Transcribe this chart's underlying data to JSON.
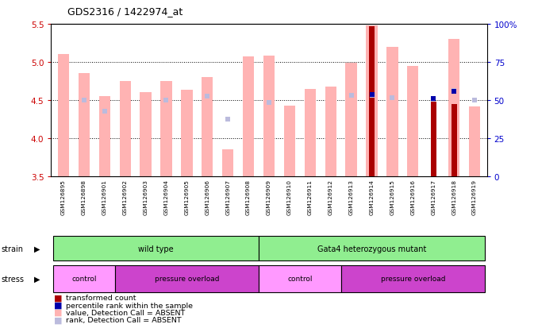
{
  "title": "GDS2316 / 1422974_at",
  "samples": [
    "GSM126895",
    "GSM126898",
    "GSM126901",
    "GSM126902",
    "GSM126903",
    "GSM126904",
    "GSM126905",
    "GSM126906",
    "GSM126907",
    "GSM126908",
    "GSM126909",
    "GSM126910",
    "GSM126911",
    "GSM126912",
    "GSM126913",
    "GSM126914",
    "GSM126915",
    "GSM126916",
    "GSM126917",
    "GSM126918",
    "GSM126919"
  ],
  "pink_bar_values": [
    5.1,
    4.85,
    4.55,
    4.75,
    4.6,
    4.75,
    4.63,
    4.8,
    3.85,
    5.07,
    5.08,
    4.43,
    4.65,
    4.68,
    4.99,
    5.48,
    5.2,
    4.95,
    null,
    5.3,
    4.42
  ],
  "blue_sq_ranks": [
    null,
    4.5,
    4.35,
    null,
    null,
    4.5,
    null,
    4.55,
    4.25,
    null,
    4.47,
    null,
    null,
    null,
    4.56,
    4.56,
    4.53,
    null,
    4.51,
    4.62,
    4.5
  ],
  "dark_red_values": [
    null,
    null,
    null,
    null,
    null,
    null,
    null,
    null,
    null,
    null,
    null,
    null,
    null,
    null,
    null,
    5.47,
    null,
    null,
    4.48,
    4.45,
    null
  ],
  "dark_blue_ranks": [
    null,
    null,
    null,
    null,
    null,
    null,
    null,
    null,
    null,
    null,
    null,
    null,
    null,
    null,
    null,
    4.57,
    null,
    null,
    4.52,
    4.61,
    null
  ],
  "ylim_left": [
    3.5,
    5.5
  ],
  "ylim_right": [
    0,
    100
  ],
  "yticks_left": [
    3.5,
    4.0,
    4.5,
    5.0,
    5.5
  ],
  "yticks_right": [
    0,
    25,
    50,
    75,
    100
  ],
  "ytick_labels_right": [
    "0",
    "25",
    "50",
    "75",
    "100%"
  ],
  "pink_color": "#FFB3B3",
  "lightblue_color": "#BBBBDD",
  "darkred_color": "#AA0000",
  "darkblue_color": "#0000AA",
  "left_axis_color": "#CC0000",
  "right_axis_color": "#0000CC",
  "label_bg": "#CCCCCC",
  "strain_color": "#90EE90",
  "control_color": "#FF99FF",
  "pressure_color": "#CC44CC",
  "legend_items": [
    [
      "#AA0000",
      "transformed count"
    ],
    [
      "#0000AA",
      "percentile rank within the sample"
    ],
    [
      "#FFB3B3",
      "value, Detection Call = ABSENT"
    ],
    [
      "#BBBBDD",
      "rank, Detection Call = ABSENT"
    ]
  ]
}
